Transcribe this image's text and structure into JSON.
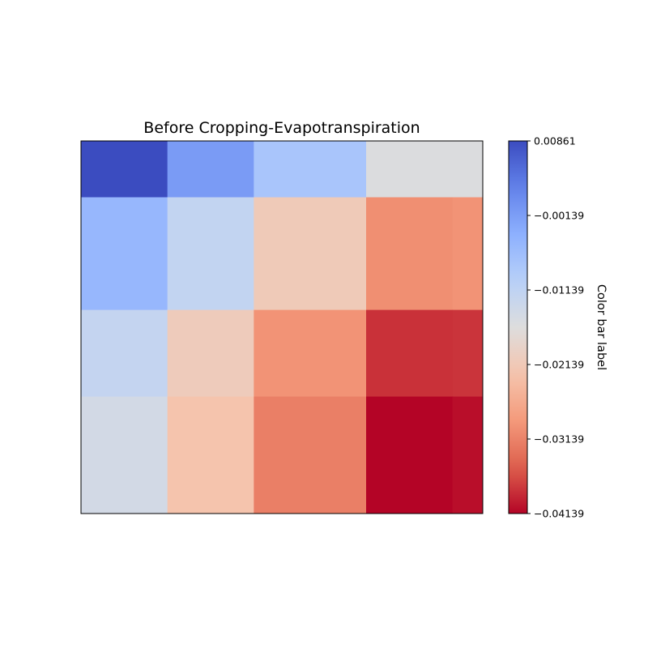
{
  "chart_data": {
    "type": "heatmap",
    "title": "Before Cropping-Evapotranspiration",
    "colormap": "coolwarm",
    "x_edges": [
      0,
      1,
      2,
      3.3,
      4.3,
      4.65
    ],
    "y_edges": [
      0,
      0.65,
      1.95,
      2.95,
      4.3
    ],
    "z": [
      [
        0.0086,
        -0.0011,
        -0.0079,
        -0.0161,
        -0.0161
      ],
      [
        -0.0053,
        -0.0119,
        -0.0212,
        -0.0301,
        -0.0296
      ],
      [
        -0.0121,
        -0.0208,
        -0.0296,
        -0.0383,
        -0.0381
      ],
      [
        -0.0146,
        -0.0226,
        -0.0318,
        -0.0414,
        -0.0407
      ]
    ],
    "colorbar": {
      "label": "Color bar label",
      "vmin": -0.04139,
      "vmax": 0.00861,
      "ticks": [
        0.00861,
        -0.00139,
        -0.01139,
        -0.02139,
        -0.03139,
        -0.04139
      ],
      "tick_labels": [
        "0.00861",
        "−0.00139",
        "−0.01139",
        "−0.02139",
        "−0.03139",
        "−0.04139"
      ]
    },
    "axes_ticks_visible": false,
    "grid": false
  }
}
